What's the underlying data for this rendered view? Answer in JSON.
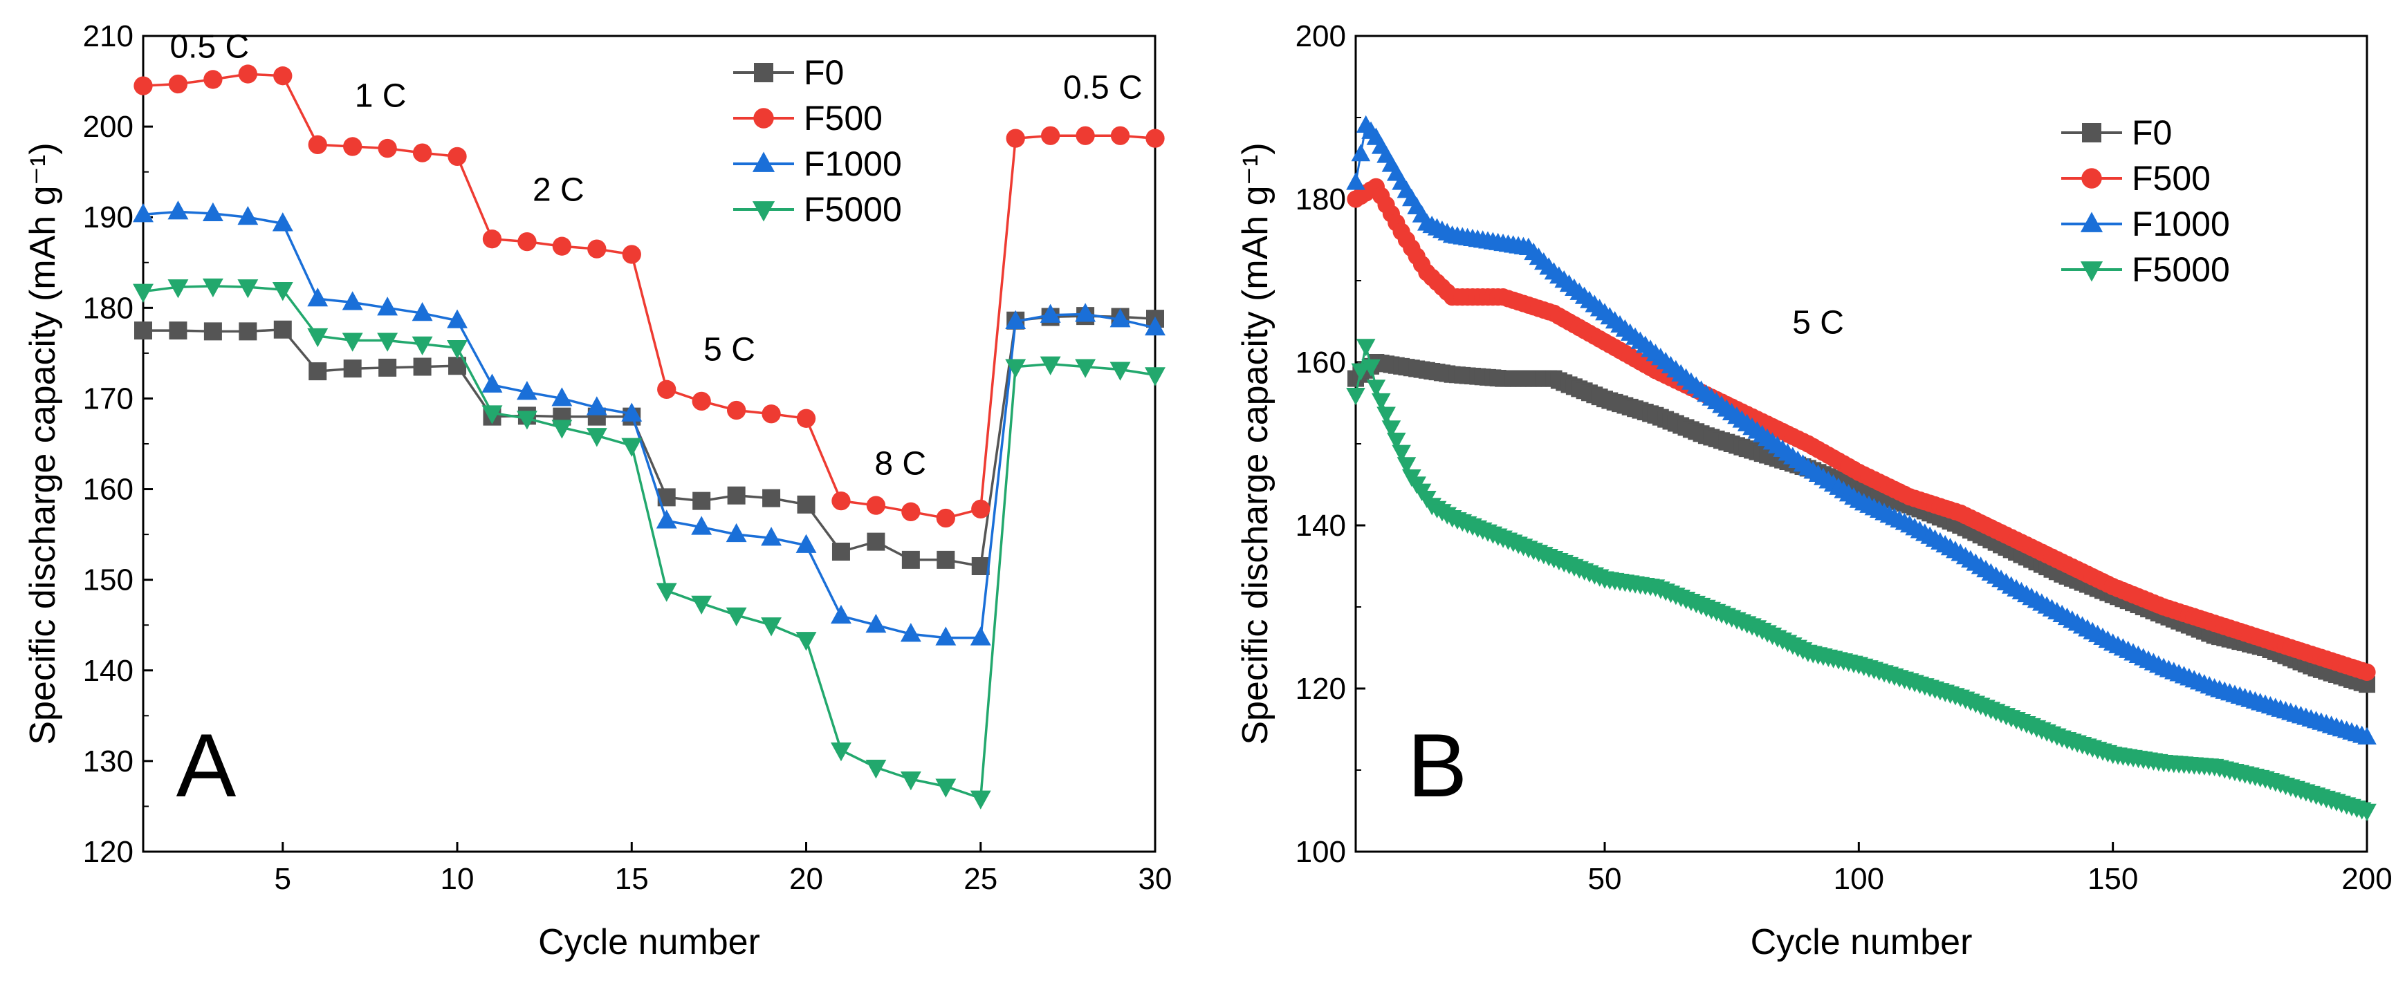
{
  "chart_data": [
    {
      "panel": "A",
      "type": "line",
      "title": "",
      "xlabel": "Cycle number",
      "ylabel": "Specific discharge capacity (mAh g⁻¹)",
      "xlim": [
        1,
        30
      ],
      "ylim": [
        120,
        210
      ],
      "xticks": [
        5,
        10,
        15,
        20,
        25,
        30
      ],
      "yticks": [
        120,
        130,
        140,
        150,
        160,
        170,
        180,
        190,
        200,
        210
      ],
      "legend_position": "top-center",
      "grid": false,
      "x": [
        1,
        2,
        3,
        4,
        5,
        6,
        7,
        8,
        9,
        10,
        11,
        12,
        13,
        14,
        15,
        16,
        17,
        18,
        19,
        20,
        21,
        22,
        23,
        24,
        25,
        26,
        27,
        28,
        29,
        30
      ],
      "series": [
        {
          "name": "F0",
          "color": "#555555",
          "marker": "square",
          "values": [
            177.5,
            177.5,
            177.4,
            177.4,
            177.6,
            173.0,
            173.3,
            173.4,
            173.5,
            173.6,
            168.0,
            168.1,
            168.0,
            168.0,
            168.0,
            159.1,
            158.7,
            159.3,
            159.0,
            158.3,
            153.1,
            154.2,
            152.2,
            152.2,
            151.5,
            178.6,
            179.0,
            179.1,
            179.0,
            178.8
          ]
        },
        {
          "name": "F500",
          "color": "#ee3b32",
          "marker": "circle",
          "values": [
            204.5,
            204.7,
            205.2,
            205.8,
            205.6,
            198.0,
            197.8,
            197.6,
            197.1,
            196.7,
            187.6,
            187.3,
            186.8,
            186.5,
            185.9,
            171.0,
            169.7,
            168.7,
            168.3,
            167.8,
            158.7,
            158.2,
            157.5,
            156.8,
            157.8,
            198.7,
            199.0,
            199.0,
            199.0,
            198.7
          ]
        },
        {
          "name": "F1000",
          "color": "#1a6fd8",
          "marker": "triangle-up",
          "values": [
            190.3,
            190.6,
            190.4,
            190.0,
            189.3,
            181.0,
            180.6,
            180.0,
            179.4,
            178.6,
            171.5,
            170.7,
            170.0,
            169.0,
            168.3,
            156.5,
            155.8,
            155.0,
            154.6,
            153.8,
            146.0,
            145.0,
            144.0,
            143.6,
            143.6,
            178.5,
            179.2,
            179.3,
            178.7,
            177.8
          ]
        },
        {
          "name": "F5000",
          "color": "#22a86d",
          "marker": "triangle-down",
          "values": [
            181.8,
            182.3,
            182.4,
            182.3,
            182.0,
            176.9,
            176.4,
            176.4,
            176.0,
            175.6,
            168.4,
            167.8,
            166.8,
            165.9,
            164.8,
            148.8,
            147.4,
            146.1,
            145.0,
            143.4,
            131.2,
            129.3,
            128.0,
            127.2,
            125.9,
            173.5,
            173.8,
            173.5,
            173.2,
            172.6
          ]
        }
      ],
      "annotations": [
        {
          "text": "0.5 C",
          "x": 2.9,
          "y": 207.6
        },
        {
          "text": "1 C",
          "x": 7.8,
          "y": 202.2
        },
        {
          "text": "2 C",
          "x": 12.9,
          "y": 191.8
        },
        {
          "text": "5 C",
          "x": 17.8,
          "y": 174.2
        },
        {
          "text": "8 C",
          "x": 22.7,
          "y": 161.6
        },
        {
          "text": "0.5 C",
          "x": 28.5,
          "y": 203.1
        }
      ],
      "panel_label": "A"
    },
    {
      "panel": "B",
      "type": "line",
      "title": "",
      "xlabel": "Cycle number",
      "ylabel": "Specific discharge capacity (mAh g⁻¹)",
      "xlim": [
        1,
        200
      ],
      "ylim": [
        100,
        200
      ],
      "xticks": [
        50,
        100,
        150,
        200
      ],
      "yticks": [
        100,
        120,
        140,
        160,
        180,
        200
      ],
      "legend_position": "top-right",
      "grid": false,
      "annotations": [
        {
          "text": "5 C",
          "x": 92,
          "y": 163.5
        }
      ],
      "series": [
        {
          "name": "F0",
          "color": "#555555",
          "marker": "square",
          "x": [
            1,
            5,
            10,
            20,
            30,
            40,
            50,
            60,
            70,
            80,
            90,
            100,
            110,
            120,
            130,
            140,
            150,
            160,
            170,
            180,
            190,
            200
          ],
          "values": [
            158,
            160,
            159.5,
            158.5,
            158,
            158,
            155.5,
            153.5,
            151,
            149,
            147,
            144.5,
            142.5,
            140,
            137,
            134,
            131.5,
            129,
            126.5,
            125,
            122.5,
            120.5
          ]
        },
        {
          "name": "F500",
          "color": "#ee3b32",
          "marker": "circle",
          "x": [
            1,
            5,
            10,
            15,
            20,
            25,
            30,
            35,
            40,
            50,
            60,
            70,
            80,
            90,
            100,
            110,
            120,
            130,
            140,
            150,
            160,
            170,
            180,
            190,
            200
          ],
          "values": [
            180,
            181.5,
            176,
            171,
            168,
            168,
            168,
            167,
            166,
            162.5,
            159,
            156,
            153,
            150,
            146.5,
            143.5,
            141.5,
            138.5,
            135.5,
            132.5,
            130,
            128,
            126,
            124,
            122
          ]
        },
        {
          "name": "F1000",
          "color": "#1a6fd8",
          "marker": "triangle-up",
          "x": [
            1,
            3,
            5,
            10,
            15,
            20,
            25,
            30,
            35,
            40,
            50,
            60,
            70,
            80,
            90,
            100,
            110,
            120,
            130,
            140,
            150,
            160,
            170,
            180,
            190,
            200
          ],
          "values": [
            182,
            189,
            187.5,
            182,
            177,
            175.5,
            175,
            174.5,
            174,
            171,
            166,
            161,
            156,
            151.5,
            147,
            143,
            140,
            136.5,
            132.5,
            129,
            125.5,
            122.5,
            120,
            118,
            116,
            114
          ]
        },
        {
          "name": "F5000",
          "color": "#22a86d",
          "marker": "triangle-down",
          "x": [
            1,
            3,
            5,
            8,
            12,
            16,
            20,
            30,
            40,
            50,
            60,
            70,
            80,
            90,
            100,
            110,
            120,
            130,
            140,
            150,
            160,
            170,
            180,
            190,
            200
          ],
          "values": [
            156,
            162,
            157,
            152,
            146,
            142.5,
            141,
            138.5,
            136,
            133.5,
            132.5,
            130,
            127.5,
            124.5,
            123,
            121,
            119,
            116.5,
            114,
            112,
            111,
            110.5,
            109,
            107,
            105
          ]
        }
      ],
      "panel_label": "B"
    }
  ]
}
